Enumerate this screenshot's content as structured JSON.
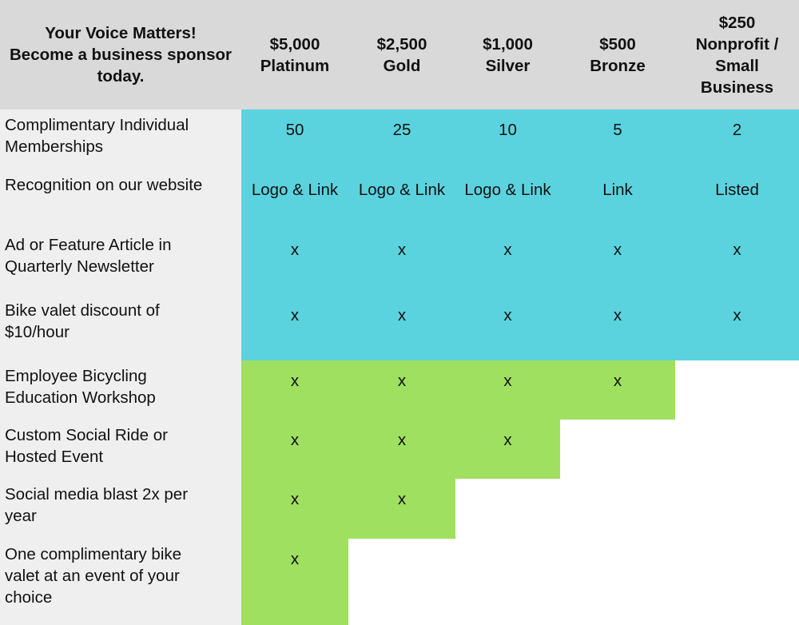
{
  "header": {
    "title_lines": [
      "Your Voice Matters!",
      "Become a business sponsor",
      "today."
    ],
    "tiers": [
      {
        "lines": [
          "$5,000",
          "Platinum"
        ]
      },
      {
        "lines": [
          "$2,500",
          "Gold"
        ]
      },
      {
        "lines": [
          "$1,000",
          "Silver"
        ]
      },
      {
        "lines": [
          "$500",
          "Bronze"
        ]
      },
      {
        "lines": [
          "$250",
          "Nonprofit /",
          "Small",
          "Business"
        ]
      }
    ]
  },
  "rows": [
    {
      "label": [
        "Complimentary Individual",
        "Memberships"
      ],
      "values": [
        "50",
        "25",
        "10",
        "5",
        "2"
      ]
    },
    {
      "label": [
        "Recognition on our website"
      ],
      "values": [
        "Logo & Link",
        "Logo & Link",
        "Logo & Link",
        "Link",
        "Listed"
      ]
    },
    {
      "label": [
        "Ad or Feature Article in",
        "Quarterly Newsletter"
      ],
      "values": [
        "x",
        "x",
        "x",
        "x",
        "x"
      ]
    },
    {
      "label": [
        "Bike valet discount of",
        "$10/hour"
      ],
      "values": [
        "x",
        "x",
        "x",
        "x",
        "x"
      ]
    },
    {
      "label": [
        "Employee Bicycling",
        "Education Workshop"
      ],
      "values": [
        "x",
        "x",
        "x",
        "x",
        ""
      ]
    },
    {
      "label": [
        "Custom Social Ride or",
        "Hosted Event"
      ],
      "values": [
        "x",
        "x",
        "x",
        "",
        ""
      ]
    },
    {
      "label": [
        "Social media blast 2x per",
        "year"
      ],
      "values": [
        "x",
        "x",
        "",
        "",
        ""
      ]
    },
    {
      "label": [
        "One complimentary bike",
        "valet at an event of your",
        "choice"
      ],
      "values": [
        "x",
        "",
        "",
        "",
        ""
      ]
    }
  ],
  "colors": {
    "header_bg": "#d9d9d9",
    "label_bg": "#efefef",
    "all_tiers_bg": "#5bd3de",
    "upper_tiers_bg": "#9fe060",
    "empty_bg": "#ffffff"
  }
}
